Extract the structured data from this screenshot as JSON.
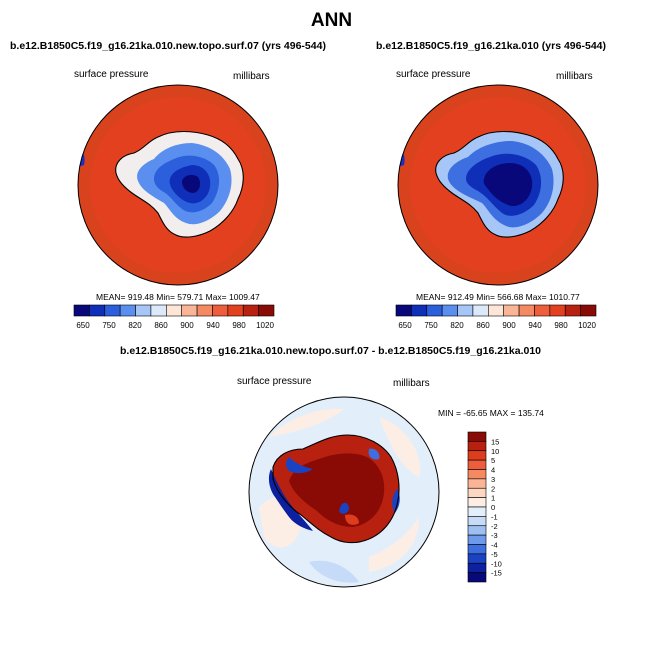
{
  "main_title": "ANN",
  "panels": [
    {
      "title": "b.e12.B1850C5.f19_g16.21ka.010.new.topo.surf.07 (yrs 496-544)",
      "left_label": "surface pressure",
      "right_label": "millibars",
      "stats": "MEAN= 919.48  Min= 579.71  Max= 1009.47"
    },
    {
      "title": "b.e12.B1850C5.f19_g16.21ka.010 (yrs 496-544)",
      "left_label": "surface pressure",
      "right_label": "millibars",
      "stats": "MEAN= 912.49  Min= 566.68  Max= 1010.77"
    }
  ],
  "abs_colorbar": {
    "ticks": [
      "650",
      "750",
      "820",
      "860",
      "900",
      "940",
      "980",
      "1020"
    ],
    "colors": [
      "#08087a",
      "#0f2fb8",
      "#2b5fdc",
      "#5a8ff0",
      "#a6c6f7",
      "#dce9fb",
      "#fde5d7",
      "#f9b596",
      "#f58a62",
      "#ee5e3c",
      "#e2401e",
      "#b8210f",
      "#8a0b05"
    ]
  },
  "diff_panel": {
    "title": "b.e12.B1850C5.f19_g16.21ka.010.new.topo.surf.07 - b.e12.B1850C5.f19_g16.21ka.010",
    "left_label": "surface pressure",
    "right_label": "millibars",
    "stats": "MIN = -65.65 MAX = 135.74"
  },
  "diff_colorbar": {
    "ticks": [
      "15",
      "10",
      "5",
      "4",
      "3",
      "2",
      "1",
      "0",
      "-1",
      "-2",
      "-3",
      "-4",
      "-5",
      "-10",
      "-15"
    ],
    "colors": [
      "#8a0b05",
      "#b8210f",
      "#dd3d1d",
      "#ee5e3c",
      "#f58a62",
      "#f9b596",
      "#fdd7c2",
      "#fdeee5",
      "#e3eefb",
      "#c5dbf7",
      "#9dbff2",
      "#6f9aec",
      "#3d6fe0",
      "#1a43c4",
      "#0c20a0",
      "#08087a"
    ]
  }
}
